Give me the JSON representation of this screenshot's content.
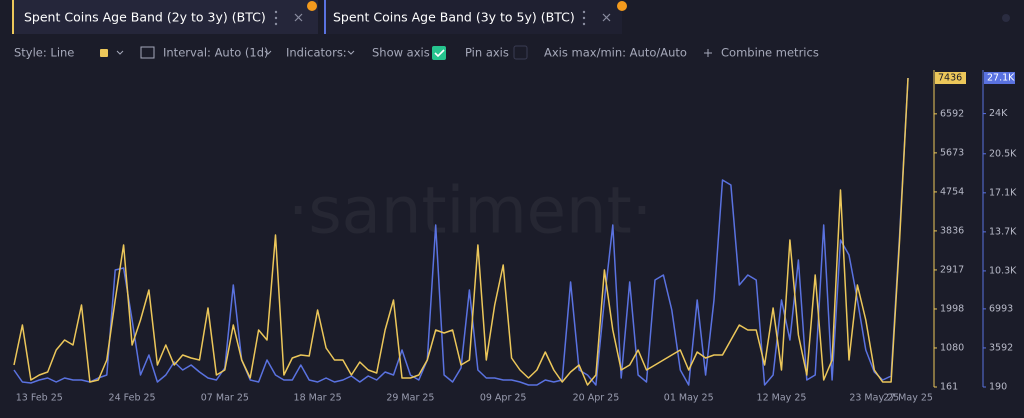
{
  "toolbar": {
    "style": "Style: Line",
    "interval": "Interval: Auto (1d)",
    "indicators": "Indicators:",
    "show_axis": "Show axis",
    "pin_axis": "Pin axis",
    "axis_minmax": "Axis max/min: Auto/Auto",
    "combine": "Combine metrics"
  },
  "chart_data": {
    "type": "line",
    "watermark": "·santiment·",
    "categories": [
      null,
      null,
      null,
      "13 Feb 25",
      null,
      null,
      null,
      null,
      null,
      null,
      null,
      null,
      null,
      null,
      "24 Feb 25",
      null,
      null,
      null,
      null,
      null,
      null,
      null,
      null,
      null,
      null,
      "07 Mar 25",
      null,
      null,
      null,
      null,
      null,
      null,
      null,
      null,
      null,
      null,
      "18 Mar 25",
      null,
      null,
      null,
      null,
      null,
      null,
      null,
      null,
      null,
      null,
      "29 Mar 25",
      null,
      null,
      null,
      null,
      null,
      null,
      null,
      null,
      null,
      null,
      "09 Apr 25",
      null,
      null,
      null,
      null,
      null,
      null,
      null,
      null,
      null,
      null,
      "20 Apr 25",
      null,
      null,
      null,
      null,
      null,
      null,
      null,
      null,
      null,
      null,
      "01 May 25",
      null,
      null,
      null,
      null,
      null,
      null,
      null,
      null,
      null,
      null,
      "12 May 25",
      null,
      null,
      null,
      null,
      null,
      null,
      null,
      null,
      null,
      null,
      "23 May 25",
      null,
      null,
      null,
      "27 May 25"
    ],
    "series": [
      {
        "name": "Spent Coins Age Band (2y to 3y) (BTC)",
        "color": "#ecc75a",
        "axis": "y",
        "values": [
          679,
          1620,
          326,
          443,
          514,
          1032,
          1267,
          1150,
          2091,
          279,
          326,
          797,
          2209,
          3504,
          1150,
          1738,
          2445,
          679,
          1150,
          679,
          914,
          844,
          797,
          2021,
          443,
          561,
          1620,
          797,
          373,
          1503,
          1267,
          3740,
          443,
          844,
          914,
          891,
          1974,
          1079,
          797,
          797,
          443,
          750,
          561,
          490,
          1503,
          2209,
          373,
          373,
          443,
          797,
          1503,
          1432,
          1503,
          679,
          797,
          3504,
          797,
          2091,
          3033,
          844,
          561,
          373,
          561,
          985,
          561,
          279,
          514,
          679,
          208,
          443,
          2915,
          1503,
          561,
          679,
          1032,
          561,
          679,
          797,
          914,
          1032,
          561,
          985,
          844,
          914,
          914,
          1267,
          1620,
          1503,
          1503,
          679,
          2021,
          561,
          3622,
          1385,
          443,
          2797,
          326,
          797,
          4798,
          797,
          2562,
          1738,
          561,
          279,
          279,
          3622,
          7436
        ]
      },
      {
        "name": "Spent Coins Age Band (3y to 5y) (BTC)",
        "color": "#5a72e0",
        "axis": "y2",
        "values": [
          1670,
          625,
          538,
          800,
          974,
          625,
          974,
          800,
          800,
          625,
          974,
          1235,
          10380,
          10554,
          6025,
          1235,
          2977,
          625,
          1235,
          2367,
          1670,
          2106,
          1496,
          974,
          800,
          1845,
          9073,
          2541,
          800,
          625,
          2541,
          1235,
          800,
          800,
          2106,
          800,
          625,
          974,
          625,
          800,
          1148,
          625,
          1148,
          800,
          1496,
          1235,
          3412,
          1235,
          800,
          2541,
          14299,
          1235,
          625,
          1845,
          8638,
          1670,
          974,
          974,
          800,
          800,
          625,
          364,
          364,
          800,
          625,
          800,
          9334,
          1670,
          1235,
          364,
          7767,
          14299,
          974,
          9334,
          1235,
          625,
          9509,
          9944,
          6896,
          1670,
          364,
          7767,
          1235,
          7767,
          18218,
          17783,
          9073,
          9944,
          9509,
          364,
          1235,
          7767,
          4283,
          11250,
          800,
          1235,
          14299,
          800,
          12992,
          11686,
          7767,
          3412,
          1496,
          800,
          1148,
          13428,
          27101
        ],
        "value_labels": [
          null,
          null,
          null,
          null,
          null,
          null,
          null,
          null,
          null,
          null,
          null,
          null,
          null,
          null,
          null,
          null,
          null,
          null,
          null,
          null,
          null,
          null,
          null,
          null,
          null,
          null,
          null,
          null,
          null,
          null,
          null,
          null,
          null,
          null,
          null,
          null,
          null,
          null,
          null,
          null,
          null,
          null,
          null,
          null,
          null,
          null,
          null,
          null,
          null,
          null,
          null,
          null,
          null,
          null,
          null,
          null,
          null,
          null,
          null,
          null,
          null,
          null,
          null,
          null,
          null,
          null,
          null,
          null,
          null,
          null,
          null,
          null,
          null,
          null,
          null,
          null,
          null,
          null,
          null,
          null,
          null,
          null,
          null,
          null,
          null,
          null,
          null,
          null,
          null,
          null,
          null,
          null,
          null,
          null,
          null,
          null,
          null,
          null,
          null,
          null,
          null,
          null,
          null,
          null,
          null,
          null,
          "27.1K"
        ]
      }
    ],
    "ylim": [
      161,
      7436
    ],
    "yticks": [
      161,
      1080,
      1998,
      2917,
      3836,
      4754,
      5673,
      6592
    ],
    "y2lim": [
      190,
      27100
    ],
    "y2ticks": [
      190,
      3592,
      6993,
      {
        "value": 10300,
        "label": "10.3K"
      },
      {
        "value": 13700,
        "label": "13.7K"
      },
      {
        "value": 17100,
        "label": "17.1K"
      },
      {
        "value": 20500,
        "label": "20.5K"
      },
      {
        "value": 24000,
        "label": "24K"
      }
    ],
    "grid": false
  }
}
